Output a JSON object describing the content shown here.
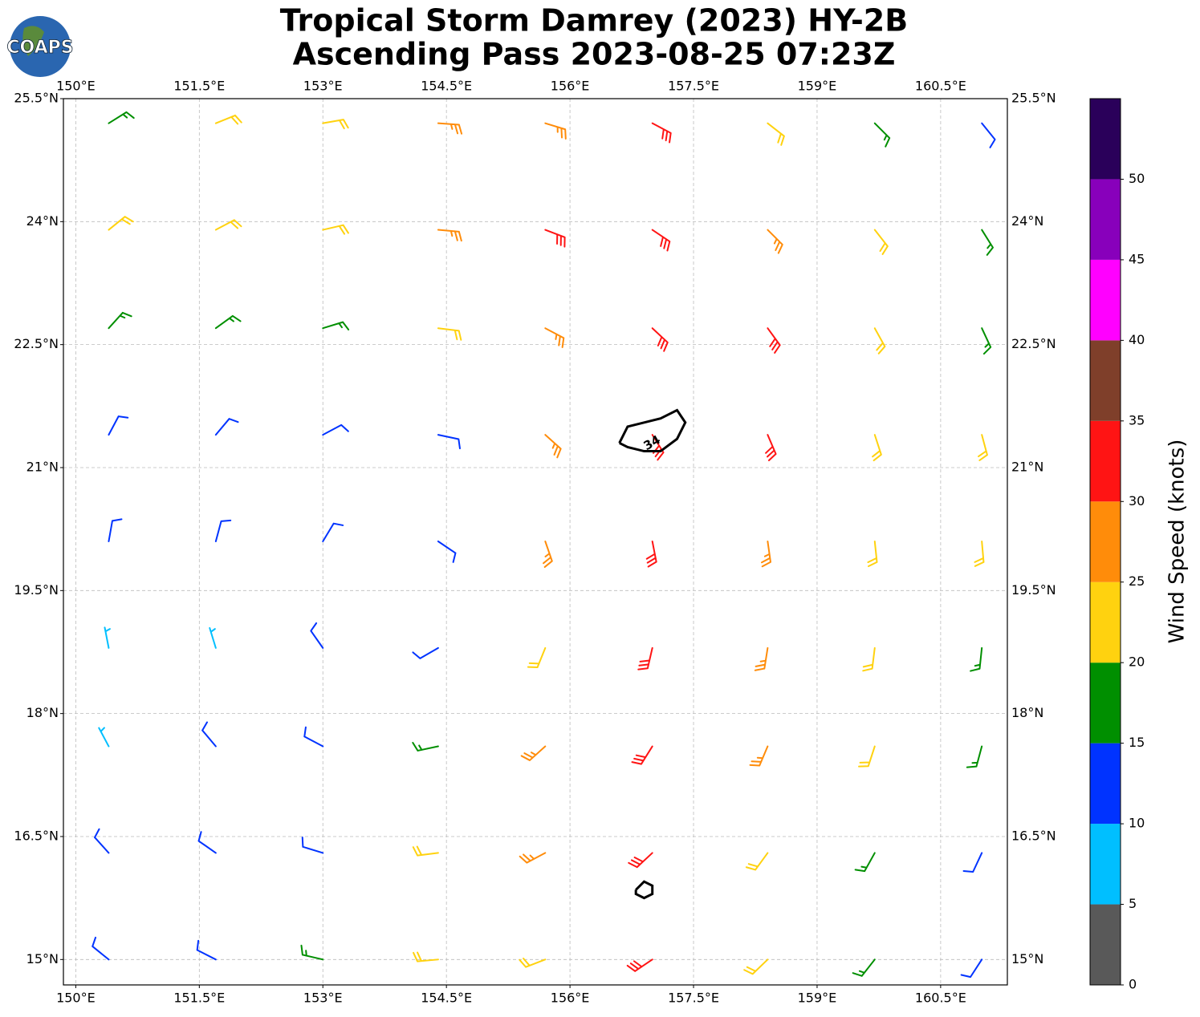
{
  "chart_data": {
    "type": "wind_barb",
    "logo": "COAPS",
    "title": "Tropical Storm Damrey (2023) HY-2B",
    "subtitle": "Ascending Pass 2023-08-25 07:23Z",
    "xlim": [
      149.85,
      161.31
    ],
    "ylim": [
      14.69,
      25.5
    ],
    "xticks": [
      {
        "value": 150,
        "label": "150°E"
      },
      {
        "value": 151.5,
        "label": "151.5°E"
      },
      {
        "value": 153,
        "label": "153°E"
      },
      {
        "value": 154.5,
        "label": "154.5°E"
      },
      {
        "value": 156,
        "label": "156°E"
      },
      {
        "value": 157.5,
        "label": "157.5°E"
      },
      {
        "value": 159,
        "label": "159°E"
      },
      {
        "value": 160.5,
        "label": "160.5°E"
      }
    ],
    "yticks": [
      {
        "value": 15,
        "label": "15°N"
      },
      {
        "value": 16.5,
        "label": "16.5°N"
      },
      {
        "value": 18,
        "label": "18°N"
      },
      {
        "value": 19.5,
        "label": "19.5°N"
      },
      {
        "value": 21,
        "label": "21°N"
      },
      {
        "value": 22.5,
        "label": "22.5°N"
      },
      {
        "value": 24,
        "label": "24°N"
      },
      {
        "value": 25.5,
        "label": "25.5°N"
      }
    ],
    "grid": true,
    "lon": [
      150.4,
      151.7,
      153.0,
      154.4,
      155.7,
      157.0,
      158.4,
      159.7,
      161.0
    ],
    "lat": [
      25.2,
      23.9,
      22.7,
      21.4,
      20.1,
      18.8,
      17.6,
      16.3,
      15.0
    ],
    "speed": [
      [
        17,
        20,
        22,
        25,
        28,
        30,
        24,
        18,
        12
      ],
      [
        20,
        22,
        24,
        27,
        30,
        32,
        27,
        20,
        15
      ],
      [
        18,
        18,
        17,
        22,
        28,
        33,
        30,
        22,
        18
      ],
      [
        14,
        12,
        10,
        14,
        26,
        34,
        30,
        24,
        20
      ],
      [
        12,
        10,
        11,
        12,
        28,
        32,
        28,
        23,
        20
      ],
      [
        9,
        8,
        11,
        13,
        23,
        30,
        27,
        22,
        18
      ],
      [
        8,
        10,
        12,
        16,
        25,
        33,
        25,
        20,
        15
      ],
      [
        10,
        12,
        14,
        20,
        26,
        32,
        24,
        17,
        10
      ],
      [
        12,
        14,
        17,
        22,
        24,
        30,
        22,
        15,
        10
      ]
    ],
    "direction": [
      [
        58,
        68,
        80,
        94,
        107,
        118,
        128,
        135,
        141
      ],
      [
        51,
        62,
        77,
        95,
        111,
        124,
        135,
        142,
        148
      ],
      [
        42,
        54,
        73,
        97,
        118,
        133,
        144,
        151,
        155
      ],
      [
        28,
        40,
        62,
        102,
        132,
        148,
        157,
        162,
        165
      ],
      [
        10,
        15,
        31,
        124,
        161,
        169,
        172,
        174,
        175
      ],
      [
        349,
        343,
        325,
        240,
        202,
        193,
        189,
        187,
        186
      ],
      [
        332,
        320,
        298,
        258,
        228,
        212,
        203,
        198,
        195
      ],
      [
        318,
        305,
        287,
        263,
        242,
        227,
        216,
        209,
        205
      ],
      [
        309,
        297,
        283,
        265,
        249,
        236,
        226,
        218,
        213
      ]
    ],
    "contours": [
      {
        "level": 34,
        "lon": [
          156.6,
          156.7,
          156.9,
          157.1,
          157.3,
          157.4,
          157.3,
          157.1,
          156.9,
          156.7,
          156.6
        ],
        "lat": [
          21.3,
          21.5,
          21.55,
          21.6,
          21.7,
          21.55,
          21.35,
          21.2,
          21.2,
          21.25,
          21.3
        ]
      },
      {
        "level": 34,
        "lon": [
          156.8,
          156.9,
          157.0,
          157.0,
          156.9,
          156.8,
          156.8
        ],
        "lat": [
          15.85,
          15.95,
          15.9,
          15.8,
          15.75,
          15.8,
          15.85
        ]
      }
    ],
    "colorbar": {
      "label": "Wind Speed (knots)",
      "lim": [
        0,
        55
      ],
      "ticks": [
        0,
        5,
        10,
        15,
        20,
        25,
        30,
        35,
        40,
        45,
        50
      ],
      "colors": [
        "#595959",
        "#00bfff",
        "#0033ff",
        "#008f00",
        "#ffd20f",
        "#ff8c0a",
        "#ff1414",
        "#7f3f2a",
        "#ff00ff",
        "#8800bb",
        "#2a005a"
      ]
    }
  }
}
